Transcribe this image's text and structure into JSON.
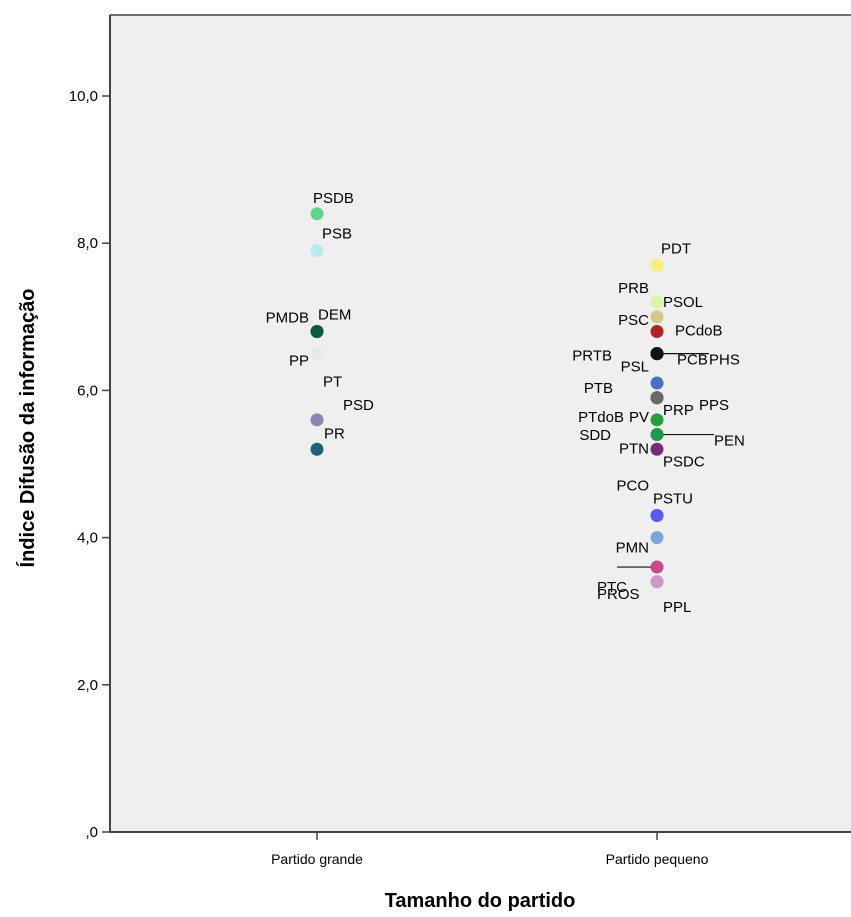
{
  "chart_data": {
    "type": "scatter",
    "xlabel": "Tamanho do partido",
    "ylabel": "Índice Difusão da informação",
    "categories": [
      "Partido grande",
      "Partido pequeno"
    ],
    "ylim": [
      0,
      11
    ],
    "yticks": [
      0,
      2,
      4,
      6,
      8,
      10
    ],
    "ytick_labels": [
      ",0",
      "2,0",
      "4,0",
      "6,0",
      "8,0",
      "10,0"
    ],
    "grid": false,
    "background": "#efefef",
    "points": [
      {
        "label": "PSDB",
        "category": "Partido grande",
        "y": 8.4,
        "color": "#5cd68a"
      },
      {
        "label": "PSB",
        "category": "Partido grande",
        "y": 7.9,
        "color": "#b8eaf0"
      },
      {
        "label": "DEM",
        "category": "Partido grande",
        "y": 6.8,
        "color": "#0b5a3a"
      },
      {
        "label": "PMDB",
        "category": "Partido grande",
        "y": 6.8,
        "color": "#0b5a3a"
      },
      {
        "label": "PP",
        "category": "Partido grande",
        "y": 6.5,
        "color": "#e8e8e8"
      },
      {
        "label": "PT",
        "category": "Partido grande",
        "y": 6.5,
        "color": "#e8e8e8"
      },
      {
        "label": "PSD",
        "category": "Partido grande",
        "y": 5.6,
        "color": "#8a85b5"
      },
      {
        "label": "PR",
        "category": "Partido grande",
        "y": 5.2,
        "color": "#1f5f77"
      },
      {
        "label": "PDT",
        "category": "Partido pequeno",
        "y": 7.7,
        "color": "#f4f07a"
      },
      {
        "label": "PRB",
        "category": "Partido pequeno",
        "y": 7.2,
        "color": "#d8f5a8"
      },
      {
        "label": "PSOL",
        "category": "Partido pequeno",
        "y": 7.2,
        "color": "#d8f5a8"
      },
      {
        "label": "PSC",
        "category": "Partido pequeno",
        "y": 7.0,
        "color": "#d4c88a"
      },
      {
        "label": "PCdoB",
        "category": "Partido pequeno",
        "y": 6.8,
        "color": "#b02424"
      },
      {
        "label": "PRTB",
        "category": "Partido pequeno",
        "y": 6.5,
        "color": "#111111"
      },
      {
        "label": "PSL",
        "category": "Partido pequeno",
        "y": 6.5,
        "color": "#111111"
      },
      {
        "label": "PCB",
        "category": "Partido pequeno",
        "y": 6.5,
        "color": "#111111"
      },
      {
        "label": "PHS",
        "category": "Partido pequeno",
        "y": 6.5,
        "color": "#111111"
      },
      {
        "label": "PTB",
        "category": "Partido pequeno",
        "y": 6.1,
        "color": "#4a6fc0"
      },
      {
        "label": "PTdoB",
        "category": "Partido pequeno",
        "y": 5.9,
        "color": "#6a6a6a"
      },
      {
        "label": "PV",
        "category": "Partido pequeno",
        "y": 5.9,
        "color": "#6a6a6a"
      },
      {
        "label": "PRP",
        "category": "Partido pequeno",
        "y": 5.9,
        "color": "#6a6a6a"
      },
      {
        "label": "PPS",
        "category": "Partido pequeno",
        "y": 5.9,
        "color": "#6a6a6a"
      },
      {
        "label": "SDD",
        "category": "Partido pequeno",
        "y": 5.6,
        "color": "#22a040"
      },
      {
        "label": "PTN",
        "category": "Partido pequeno",
        "y": 5.4,
        "color": "#1a9a4a"
      },
      {
        "label": "PEN",
        "category": "Partido pequeno",
        "y": 5.4,
        "color": "#1a9a4a"
      },
      {
        "label": "PSDC",
        "category": "Partido pequeno",
        "y": 5.2,
        "color": "#7a2a7a"
      },
      {
        "label": "PCO",
        "category": "Partido pequeno",
        "y": 4.3,
        "color": "#5a5af0"
      },
      {
        "label": "PSTU",
        "category": "Partido pequeno",
        "y": 4.3,
        "color": "#5a5af0"
      },
      {
        "label": "PMN",
        "category": "Partido pequeno",
        "y": 4.0,
        "color": "#7aa6dc"
      },
      {
        "label": "PTC",
        "category": "Partido pequeno",
        "y": 3.6,
        "color": "#c84a88"
      },
      {
        "label": "PROS",
        "category": "Partido pequeno",
        "y": 3.4,
        "color": "#c89ac4"
      },
      {
        "label": "PPL",
        "category": "Partido pequeno",
        "y": 3.4,
        "color": "#c89ac4"
      }
    ]
  }
}
